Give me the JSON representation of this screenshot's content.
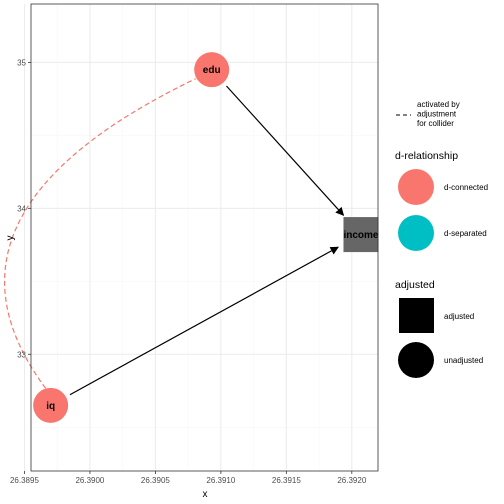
{
  "axes": {
    "x_title": "x",
    "y_title": "y",
    "x_ticks": [
      "26.3895",
      "26.3900",
      "26.3905",
      "26.3910",
      "26.3915",
      "26.3920"
    ],
    "y_ticks": [
      "33",
      "34",
      "35"
    ]
  },
  "nodes": [
    {
      "id": "edu",
      "label": "edu",
      "x": 26.39093,
      "y": 34.95,
      "status": "d-connected",
      "adjusted": false
    },
    {
      "id": "iq",
      "label": "iq",
      "x": 26.3897,
      "y": 32.65,
      "status": "d-connected",
      "adjusted": false
    },
    {
      "id": "income",
      "label": "income",
      "x": 26.39207,
      "y": 33.82,
      "status": "adjusted",
      "adjusted": true
    }
  ],
  "edges": [
    {
      "from": "edu",
      "to": "income",
      "type": "directed"
    },
    {
      "from": "iq",
      "to": "income",
      "type": "directed"
    },
    {
      "from": "iq",
      "to": "edu",
      "type": "collider-activated"
    }
  ],
  "legend": {
    "linetype": {
      "label": "activated by\nadjustment\nfor collider"
    },
    "d_relationship": {
      "title": "d-relationship",
      "items": [
        {
          "label": "d-connected",
          "color": "#F8766D"
        },
        {
          "label": "d-separated",
          "color": "#00BFC4"
        }
      ]
    },
    "adjusted": {
      "title": "adjusted",
      "items": [
        {
          "label": "adjusted",
          "shape": "square"
        },
        {
          "label": "unadjusted",
          "shape": "circle"
        }
      ]
    }
  },
  "colors": {
    "d_connected": "#F8766D",
    "d_separated": "#00BFC4",
    "adjusted_node": "#666666",
    "panel_border": "#333333",
    "grid_major": "#ebebeb",
    "grid_minor": "#f5f5f5"
  }
}
